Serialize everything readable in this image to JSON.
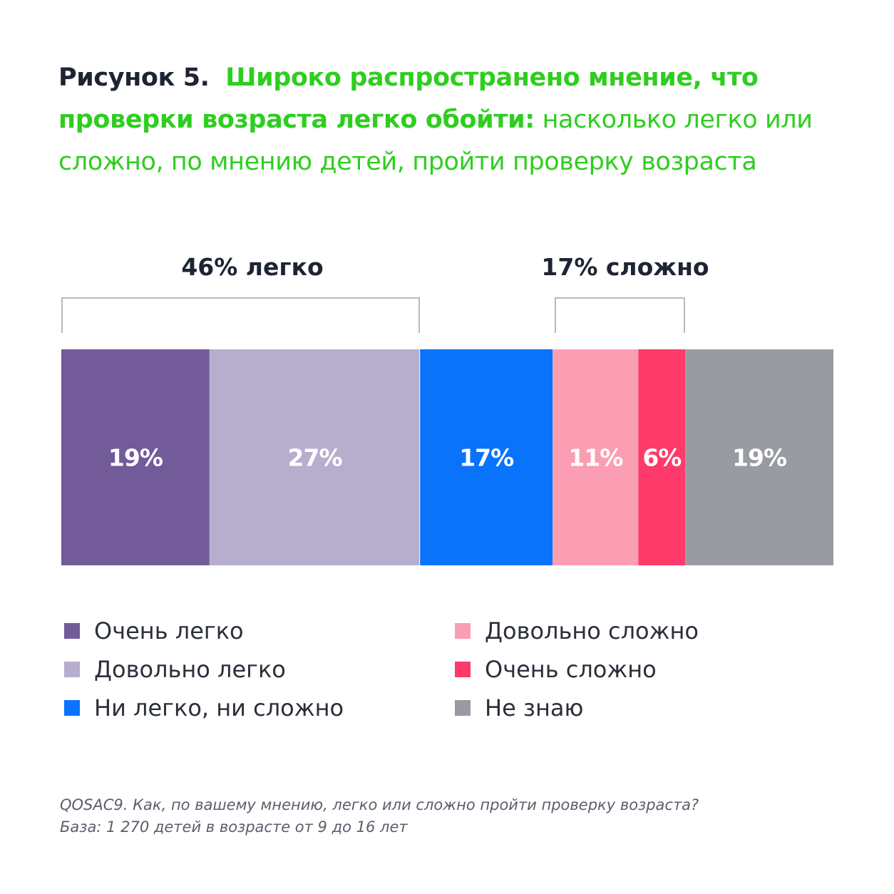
{
  "heading": {
    "figure_number": "Рисунок 5.",
    "bold_part": "Широко распространено мнение, что проверки возраста легко обойти:",
    "normal_part": "насколько легко или сложно, по мнению детей, пройти проверку возраста"
  },
  "groups": {
    "easy": "46% легко",
    "hard": "17% сложно"
  },
  "chart_data": {
    "type": "bar",
    "orientation": "horizontal-stacked-100",
    "categories": [
      "Очень легко",
      "Довольно легко",
      "Ни легко, ни сложно",
      "Довольно сложно",
      "Очень сложно",
      "Не знаю"
    ],
    "values": [
      19,
      27,
      17,
      11,
      6,
      19
    ],
    "data_labels": [
      "19%",
      "27%",
      "17%",
      "11%",
      "6%",
      "19%"
    ],
    "colors": [
      "#735a99",
      "#b7aece",
      "#0a73fc",
      "#fb9eb4",
      "#fe3a6b",
      "#999ba3"
    ],
    "legend_placement": "bottom",
    "grid": false
  },
  "legend": [
    {
      "label": "Очень легко",
      "color": "#735a99"
    },
    {
      "label": "Довольно легко",
      "color": "#b7aece"
    },
    {
      "label": "Ни легко, ни сложно",
      "color": "#0a73fc"
    },
    {
      "label": "Довольно сложно",
      "color": "#fb9eb4"
    },
    {
      "label": "Очень сложно",
      "color": "#fe3a6b"
    },
    {
      "label": "Не знаю",
      "color": "#999ba3"
    }
  ],
  "footnote": {
    "question": "QOSAC9. Как, по вашему мнению, легко или сложно пройти проверку возраста?",
    "base": "База: 1 270 детей в возрасте от 9 до 16 лет"
  }
}
